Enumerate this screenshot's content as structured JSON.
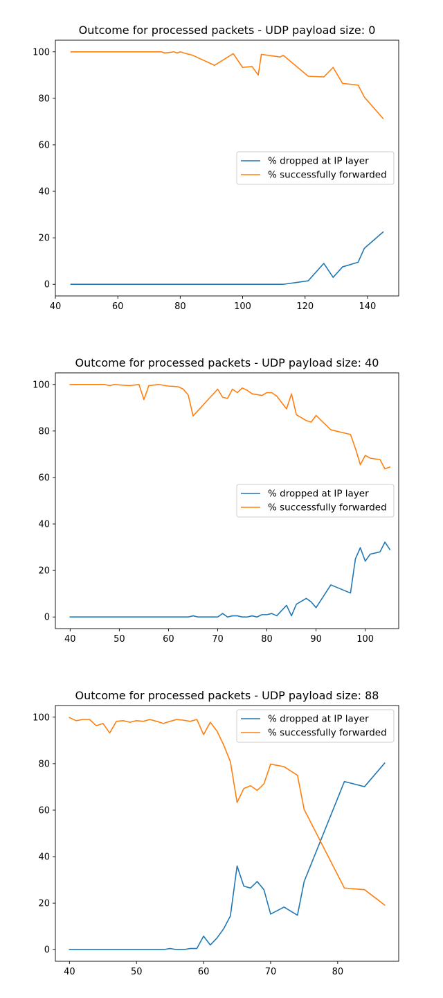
{
  "colors": {
    "dropped": "#1f77b4",
    "forwarded": "#ff7f0e"
  },
  "chart_data": [
    {
      "type": "line",
      "title": "Outcome for processed packets - UDP payload size: 0",
      "xlabel": "",
      "ylabel": "",
      "xlim": [
        40,
        150
      ],
      "ylim": [
        -5,
        105
      ],
      "xticks": [
        40,
        60,
        80,
        100,
        120,
        140
      ],
      "yticks": [
        0,
        20,
        40,
        60,
        80,
        100
      ],
      "legend": "center-right",
      "series": [
        {
          "name": "% dropped at IP layer",
          "x": [
            45,
            60,
            80,
            100,
            113,
            121,
            126,
            129,
            132,
            137,
            139,
            145
          ],
          "y": [
            0,
            0,
            0,
            0,
            0,
            1.5,
            9,
            3,
            7.5,
            9.5,
            15.5,
            22.5
          ]
        },
        {
          "name": "% successfully forwarded",
          "x": [
            45,
            60,
            70,
            74,
            75,
            77,
            78,
            79,
            80,
            82,
            84,
            91,
            97,
            100,
            103,
            105,
            106,
            112,
            113,
            121,
            126,
            129,
            132,
            137,
            139,
            145
          ],
          "y": [
            100,
            100,
            100,
            100,
            99.5,
            99.8,
            100,
            99.5,
            100,
            99.2,
            98.5,
            94.2,
            99.2,
            93.3,
            93.7,
            90,
            98.9,
            97.8,
            98.5,
            89.5,
            89.2,
            93.3,
            86.4,
            85.7,
            80.5,
            71.3
          ]
        }
      ]
    },
    {
      "type": "line",
      "title": "Outcome for processed packets - UDP payload size: 40",
      "xlabel": "",
      "ylabel": "",
      "xlim": [
        37,
        106.8
      ],
      "ylim": [
        -5,
        105
      ],
      "xticks": [
        40,
        50,
        60,
        70,
        80,
        90,
        100
      ],
      "yticks": [
        0,
        20,
        40,
        60,
        80,
        100
      ],
      "legend": "center-right",
      "series": [
        {
          "name": "% dropped at IP layer",
          "x": [
            40,
            50,
            60,
            64,
            65,
            66,
            70,
            71,
            72,
            73,
            74,
            75,
            76,
            77,
            78,
            79,
            80,
            81,
            82,
            84,
            85,
            86,
            88,
            89,
            90,
            93,
            97,
            98,
            99,
            100,
            101,
            103,
            104,
            105
          ],
          "y": [
            0,
            0,
            0,
            0,
            0.5,
            0,
            0,
            1.5,
            0,
            0.5,
            0.5,
            0,
            0,
            0.5,
            0,
            1,
            1,
            1.5,
            0.5,
            5,
            0.5,
            5.5,
            8,
            6.5,
            4,
            13.8,
            10.3,
            25,
            29.8,
            24,
            27,
            28,
            32.2,
            29
          ]
        },
        {
          "name": "% successfully forwarded",
          "x": [
            40,
            47,
            48,
            49,
            52,
            54,
            55,
            56,
            58,
            60,
            61,
            62,
            63,
            64,
            65,
            70,
            71,
            72,
            73,
            74,
            75,
            76,
            77,
            79,
            80,
            81,
            82,
            84,
            85,
            86,
            88,
            89,
            90,
            93,
            97,
            98,
            99,
            100,
            101,
            103,
            104,
            105
          ],
          "y": [
            100,
            100,
            99.5,
            100,
            99.5,
            100,
            93.5,
            99.5,
            100,
            99.3,
            99.2,
            99,
            98,
            95.5,
            86.5,
            98,
            94.5,
            94,
            98,
            96.5,
            98.5,
            97.5,
            96,
            95.3,
            96.5,
            96.5,
            95,
            89.5,
            96,
            87,
            84.5,
            83.8,
            86.7,
            80.5,
            78.5,
            72.5,
            65.5,
            69.5,
            68.3,
            67.7,
            63.7,
            64.5
          ]
        }
      ]
    },
    {
      "type": "line",
      "title": "Outcome for processed packets - UDP payload size: 88",
      "xlabel": "",
      "ylabel": "",
      "xlim": [
        37.9,
        89.1
      ],
      "ylim": [
        -5,
        105
      ],
      "xticks": [
        40,
        50,
        60,
        70,
        80
      ],
      "yticks": [
        0,
        20,
        40,
        60,
        80,
        100
      ],
      "legend": "upper-right",
      "series": [
        {
          "name": "% dropped at IP layer",
          "x": [
            40,
            50,
            54,
            55,
            56,
            57,
            58,
            59,
            60,
            61,
            62,
            63,
            64,
            65,
            66,
            67,
            68,
            69,
            70,
            72,
            74,
            75,
            81,
            84,
            87
          ],
          "y": [
            0,
            0,
            0,
            0.5,
            0,
            0,
            0.5,
            0.5,
            5.8,
            2,
            5,
            9,
            14.5,
            36,
            27.3,
            26.5,
            29.3,
            25.8,
            15.3,
            18.3,
            14.8,
            29.3,
            72.3,
            70.1,
            80.2
          ]
        },
        {
          "name": "% successfully forwarded",
          "x": [
            40,
            41,
            42,
            43,
            44,
            45,
            46,
            47,
            48,
            49,
            50,
            51,
            52,
            53,
            54,
            55,
            56,
            57,
            58,
            59,
            60,
            61,
            62,
            63,
            64,
            65,
            66,
            67,
            68,
            69,
            70,
            72,
            74,
            75,
            81,
            84,
            87
          ],
          "y": [
            99.8,
            98.5,
            99,
            99,
            96.3,
            97.3,
            93.2,
            98.2,
            98.5,
            97.8,
            98.5,
            98.2,
            99,
            98.2,
            97.3,
            98.2,
            99,
            98.7,
            98.2,
            99,
            92.5,
            97.8,
            94,
            88,
            80.8,
            63.3,
            69.3,
            70.5,
            68.5,
            71.3,
            79.8,
            78.7,
            75,
            60.3,
            26.5,
            25.8,
            19.2
          ]
        }
      ]
    }
  ]
}
